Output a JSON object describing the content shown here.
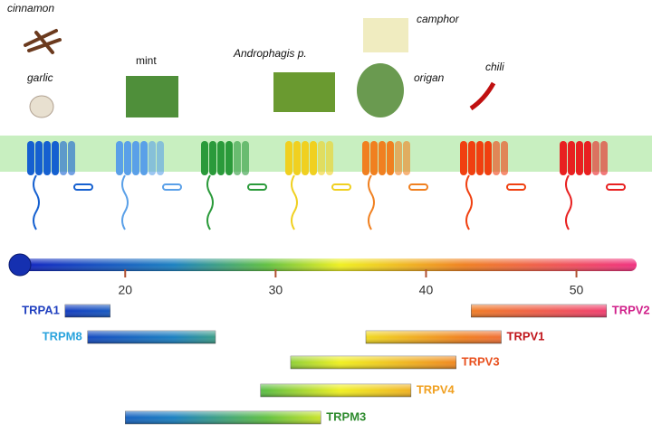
{
  "chart_data": {
    "type": "range",
    "annotations": [
      "cinnamon",
      "garlic",
      "mint",
      "Androphagis p.",
      "camphor",
      "origan",
      "chili"
    ],
    "xlim": [
      13,
      54
    ],
    "xticks": [
      20,
      30,
      40,
      50
    ],
    "series": [
      {
        "name": "TRPA1",
        "color": "#1f3fbf",
        "values": [
          16,
          19
        ]
      },
      {
        "name": "TRPM8",
        "color": "#29a3dd",
        "values": [
          17.5,
          26
        ]
      },
      {
        "name": "TRPV1",
        "color": "#c0141a",
        "values": [
          36,
          45
        ]
      },
      {
        "name": "TRPV3",
        "color": "#e8501e",
        "values": [
          31,
          42
        ]
      },
      {
        "name": "TRPV4",
        "color": "#f0a020",
        "values": [
          29,
          39
        ]
      },
      {
        "name": "TRPM3",
        "color": "#2e8b2e",
        "values": [
          20,
          33
        ]
      },
      {
        "name": "TRPV2",
        "color": "#d0208a",
        "values": [
          43,
          52
        ]
      }
    ]
  }
}
